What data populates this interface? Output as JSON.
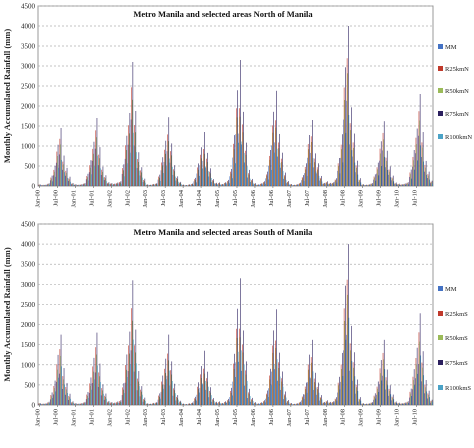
{
  "chart_data": [
    {
      "type": "bar",
      "title": "Metro Manila and selected areas North of Manila",
      "ylabel": "Monthly Accumulated Rainfall  (mm)",
      "xlabel": "",
      "ylim": [
        0,
        4500
      ],
      "yticks": [
        0,
        500,
        1000,
        1500,
        2000,
        2500,
        3000,
        3500,
        4000,
        4500
      ],
      "xticks": [
        "Jan-00",
        "Jul-00",
        "Jan-01",
        "Jul-01",
        "Jan-02",
        "Jul-02",
        "Jan-03",
        "Jul-03",
        "Jan-04",
        "Jul-04",
        "Jan-05",
        "Jul-05",
        "Jan-06",
        "Jul-06",
        "Jan-07",
        "Jul-07",
        "Jan-08",
        "Jul-08",
        "Jan-09",
        "Jul-09",
        "Jan-10",
        "Jul-10"
      ],
      "grid": true,
      "legend_position": "right",
      "series_names": [
        "MM",
        "R25kmN",
        "R50kmN",
        "R75kmN",
        "R100kmN"
      ],
      "colors": [
        "#4472c4",
        "#c0392b",
        "#9bbb59",
        "#2b1f5e",
        "#4ba3c7"
      ],
      "annual_peaks": [
        1450,
        1700,
        3100,
        1720,
        1350,
        3150,
        2380,
        1650,
        4000,
        1620,
        2300
      ],
      "series_factors": [
        0.55,
        0.82,
        0.72,
        1.0,
        0.45
      ]
    },
    {
      "type": "bar",
      "title": "Metro Manila and selected areas South of Manila",
      "ylabel": "Monthly Accumulated Rainfall  (mm)",
      "xlabel": "",
      "ylim": [
        0,
        4500
      ],
      "yticks": [
        0,
        500,
        1000,
        1500,
        2000,
        2500,
        3000,
        3500,
        4000,
        4500
      ],
      "xticks": [
        "Jan-00",
        "Jul-00",
        "Jan-01",
        "Jul-01",
        "Jan-02",
        "Jul-02",
        "Jan-03",
        "Jul-03",
        "Jan-04",
        "Jul-04",
        "Jan-05",
        "Jul-05",
        "Jan-06",
        "Jul-06",
        "Jan-07",
        "Jul-07",
        "Jan-08",
        "Jul-08",
        "Jan-09",
        "Jul-09",
        "Jan-10",
        "Jul-10"
      ],
      "grid": true,
      "legend_position": "right",
      "series_names": [
        "MM",
        "R25kmS",
        "R50kmS",
        "R75kmS",
        "R100kmS"
      ],
      "colors": [
        "#4472c4",
        "#c0392b",
        "#9bbb59",
        "#2b1f5e",
        "#4ba3c7"
      ],
      "annual_peaks": [
        1750,
        1800,
        3100,
        1750,
        1350,
        3150,
        2380,
        1620,
        4000,
        1620,
        2280
      ],
      "series_factors": [
        0.45,
        0.8,
        0.7,
        1.0,
        0.55
      ]
    }
  ]
}
